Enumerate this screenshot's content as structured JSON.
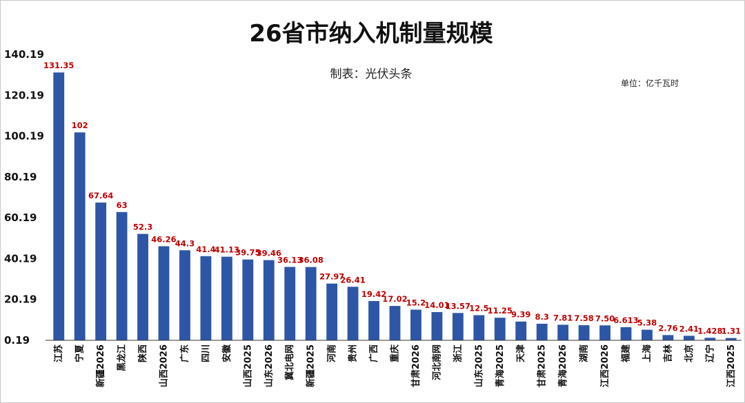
{
  "chart_data": {
    "type": "bar",
    "title": "26省市纳入机制量规模",
    "subtitle": "制表：光伏头条",
    "unit_label": "单位：亿千瓦时",
    "xlabel": "",
    "ylabel": "",
    "ylim": [
      0.19,
      140.19
    ],
    "yticks": [
      "0.19",
      "20.19",
      "40.19",
      "60.19",
      "80.19",
      "100.19",
      "120.19",
      "140.19"
    ],
    "ytick_values": [
      0.19,
      20.19,
      40.19,
      60.19,
      80.19,
      100.19,
      120.19,
      140.19
    ],
    "categories": [
      "江苏",
      "宁夏",
      "新疆2026",
      "黑龙江",
      "陕西",
      "山西2026",
      "广东",
      "四川",
      "安徽",
      "山西2025",
      "山东2026",
      "冀北电网",
      "新疆2025",
      "河南",
      "贵州",
      "广西",
      "重庆",
      "甘肃2026",
      "河北南网",
      "浙江",
      "山东2025",
      "青海2025",
      "天津",
      "甘肃2025",
      "青海2026",
      "湖南",
      "江西2026",
      "福建",
      "上海",
      "吉林",
      "北京",
      "辽宁",
      "江西2025"
    ],
    "values": [
      131.35,
      102,
      67.64,
      63,
      52.3,
      46.26,
      44.3,
      41.4,
      41.13,
      39.75,
      39.46,
      36.13,
      36.08,
      27.97,
      26.41,
      19.42,
      17.02,
      15.2,
      14.01,
      13.57,
      12.5,
      11.25,
      9.39,
      8.3,
      7.81,
      7.58,
      7.5,
      6.613,
      5.38,
      2.76,
      2.41,
      1.428,
      1.31
    ],
    "labels": [
      "131.35",
      "102",
      "67.64",
      "63",
      "52.3",
      "46.26",
      "44.3",
      "41.4",
      "41.13",
      "39.75",
      "39.46",
      "36.13",
      "36.08",
      "27.97",
      "26.41",
      "19.42",
      "17.02",
      "15.2",
      "14.01",
      "13.57",
      "12.5",
      "11.25",
      "9.39",
      "8.3",
      "7.81",
      "7.58",
      "7.50",
      "6.613",
      "5.38",
      "2.76",
      "2.41",
      "1.428",
      "1.31"
    ],
    "colors": {
      "bar": "#2e56a6",
      "label": "#c00000",
      "axis": "#333333"
    },
    "grid": false,
    "legend": "none"
  }
}
